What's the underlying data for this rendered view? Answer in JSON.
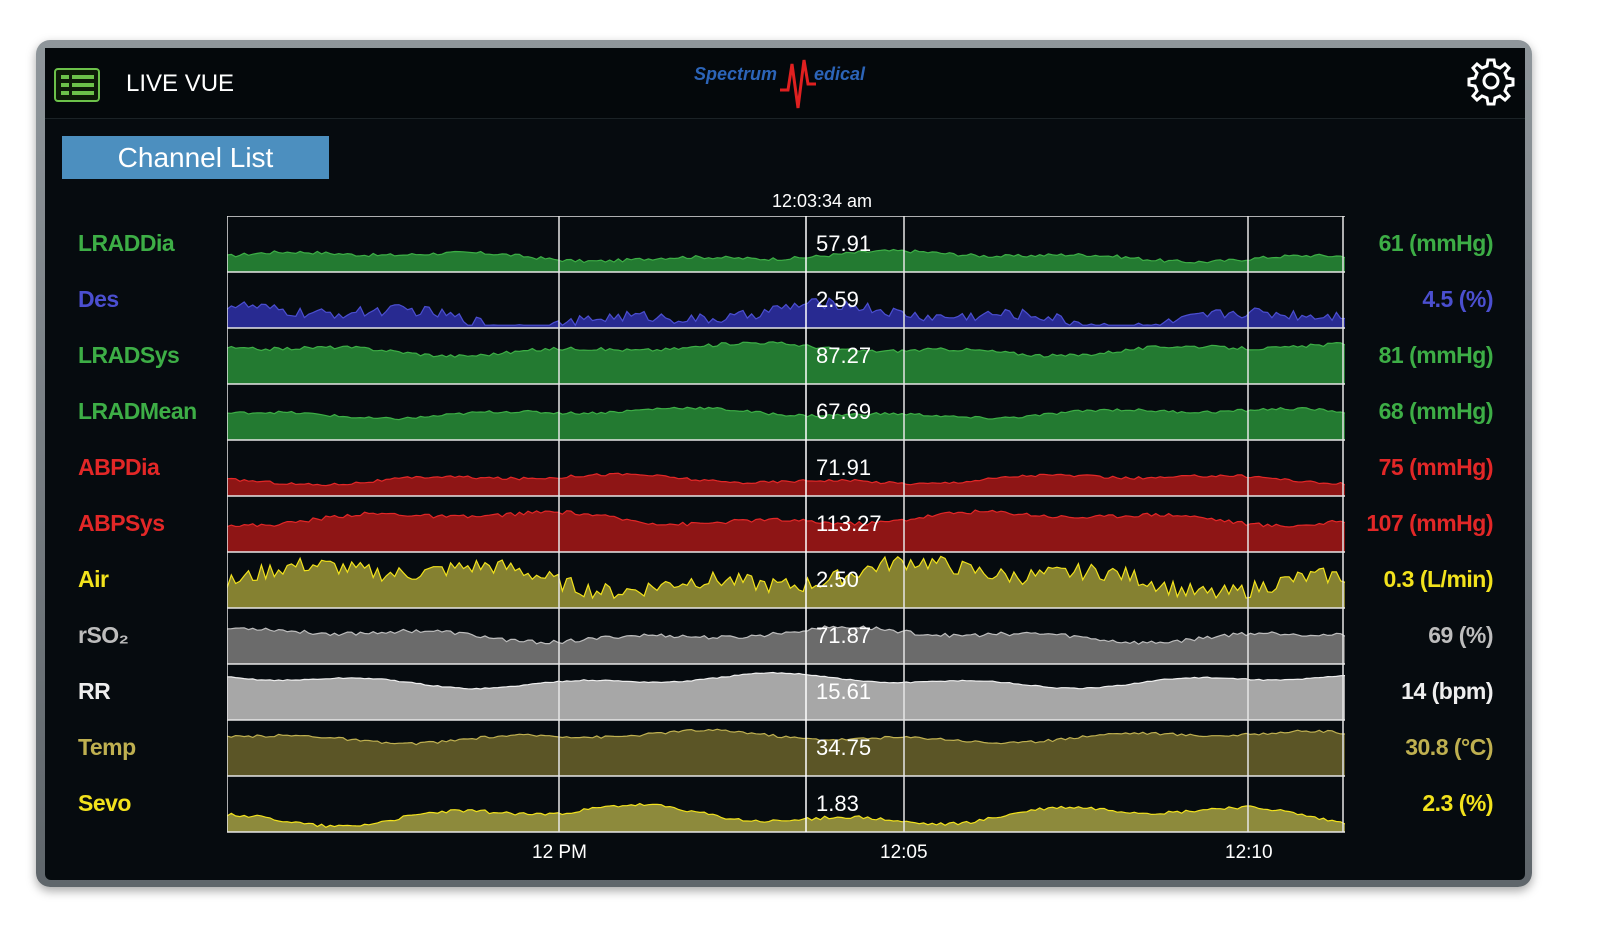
{
  "header": {
    "app_title": "LIVE VUE",
    "logo_left": "Spectrum",
    "logo_right": "edical"
  },
  "channel_list_label": "Channel List",
  "cursor_time": "12:03:34 am",
  "x_ticks": [
    "12 PM",
    "12:05",
    "12:10"
  ],
  "icons": {
    "menu": "menu-list-icon",
    "settings": "gear-icon",
    "logo": "spectrum-medical-logo"
  },
  "channels": [
    {
      "name": "LRADDia",
      "cursor_value": "57.91",
      "current": "61 (mmHg)",
      "color": "#3dae46",
      "fill": "#237a31"
    },
    {
      "name": "Des",
      "cursor_value": "2.59",
      "current": "4.5 (%)",
      "color": "#4b4fd0",
      "fill": "#282a91"
    },
    {
      "name": "LRADSys",
      "cursor_value": "87.27",
      "current": "81 (mmHg)",
      "color": "#3dae46",
      "fill": "#237a31"
    },
    {
      "name": "LRADMean",
      "cursor_value": "67.69",
      "current": "68 (mmHg)",
      "color": "#3dae46",
      "fill": "#237a31"
    },
    {
      "name": "ABPDia",
      "cursor_value": "71.91",
      "current": "75 (mmHg)",
      "color": "#e22727",
      "fill": "#8e1515"
    },
    {
      "name": "ABPSys",
      "cursor_value": "113.27",
      "current": "107 (mmHg)",
      "color": "#e22727",
      "fill": "#8e1515"
    },
    {
      "name": "Air",
      "cursor_value": "2.50",
      "current": "0.3 (L/min)",
      "color": "#f2e21c",
      "fill": "#858131"
    },
    {
      "name": "rSO₂",
      "cursor_value": "71.87",
      "current": "69 (%)",
      "color": "#bdbdbd",
      "fill": "#6b6b6b"
    },
    {
      "name": "RR",
      "cursor_value": "15.61",
      "current": "14 (bpm)",
      "color": "#eeeeee",
      "fill": "#a7a7a7"
    },
    {
      "name": "Temp",
      "cursor_value": "34.75",
      "current": "30.8 (°C)",
      "color": "#bfb050",
      "fill": "#5b5526"
    },
    {
      "name": "Sevo",
      "cursor_value": "1.83",
      "current": "2.3 (%)",
      "color": "#f2e21c",
      "fill": "#8d8a3c"
    }
  ]
}
